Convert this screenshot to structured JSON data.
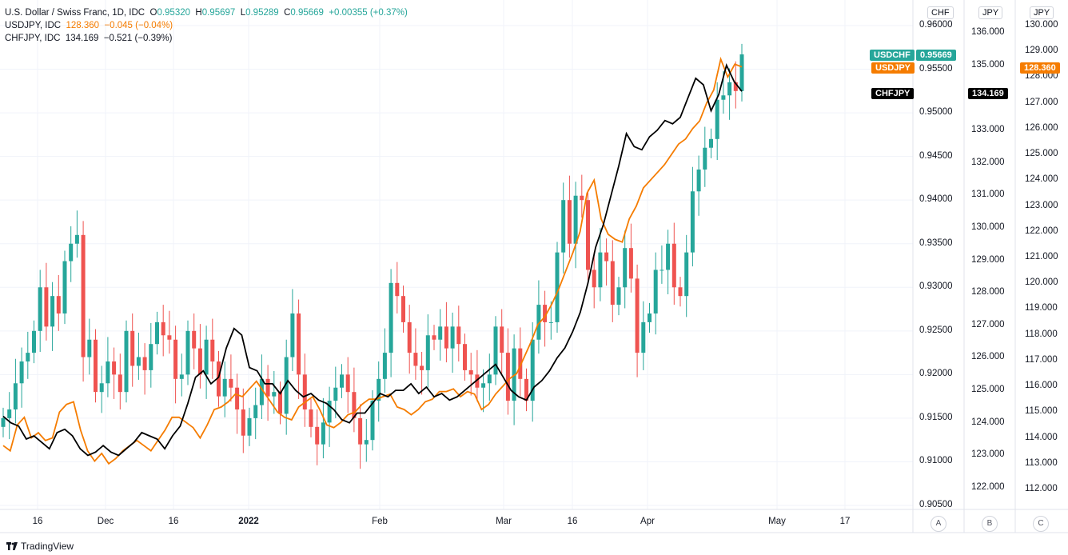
{
  "legend": {
    "usdchf": {
      "name": "U.S. Dollar / Swiss Franc, 1D, IDC",
      "o_label": "O",
      "o": "0.95320",
      "h_label": "H",
      "h": "0.95697",
      "l_label": "L",
      "l": "0.95289",
      "c_label": "C",
      "c": "0.95669",
      "change": "+0.00355 (+0.37%)"
    },
    "usdjpy": {
      "name": "USDJPY, IDC",
      "value": "128.360",
      "change": "−0.045 (−0.04%)"
    },
    "chfjpy": {
      "name": "CHFJPY, IDC",
      "value": "134.169",
      "change": "−0.521 (−0.39%)"
    }
  },
  "axes": {
    "a_header": "CHF",
    "b_header": "JPY",
    "c_header": "JPY",
    "a_button": "A",
    "b_button": "B",
    "c_button": "C",
    "a_ticks": [
      "0.96000",
      "0.95500",
      "0.95000",
      "0.94500",
      "0.94000",
      "0.93500",
      "0.93000",
      "0.92500",
      "0.92000",
      "0.91500",
      "0.91000",
      "0.90500"
    ],
    "b_ticks": [
      "136.000",
      "135.000",
      "134.000",
      "133.000",
      "132.000",
      "131.000",
      "130.000",
      "129.000",
      "128.000",
      "127.000",
      "126.000",
      "125.000",
      "124.000",
      "123.000",
      "122.000"
    ],
    "c_ticks": [
      "130.000",
      "129.000",
      "128.000",
      "127.000",
      "126.000",
      "125.000",
      "124.000",
      "123.000",
      "122.000",
      "121.000",
      "120.000",
      "119.000",
      "118.000",
      "117.000",
      "116.000",
      "115.000",
      "114.000",
      "113.000",
      "112.000"
    ],
    "x_ticks": [
      "16",
      "Dec",
      "16",
      "2022",
      "Feb",
      "Mar",
      "16",
      "Apr",
      "May",
      "17"
    ]
  },
  "price_tags": {
    "usdchf_name": "USDCHF",
    "usdchf_value": "0.95669",
    "usdjpy_name": "USDJPY",
    "usdjpy_value": "128.360",
    "chfjpy_name": "CHFJPY",
    "chfjpy_value": "134.169"
  },
  "colors": {
    "up": "#26a69a",
    "down": "#ef5350",
    "usdjpy": "#f57c00",
    "chfjpy": "#000000",
    "grid": "#f0f3fa"
  },
  "footer": {
    "brand": "TradingView"
  },
  "chart_data": {
    "type": "line",
    "title": "U.S. Dollar / Swiss Franc, 1D, IDC",
    "x_range": [
      "2021-11-05",
      "2022-04-20"
    ],
    "grid": true,
    "candles_usdchf": {
      "scale": "A",
      "closes": [
        0.915,
        0.916,
        0.919,
        0.9215,
        0.9225,
        0.925,
        0.93,
        0.9255,
        0.929,
        0.927,
        0.933,
        0.935,
        0.936,
        0.922,
        0.924,
        0.918,
        0.919,
        0.9215,
        0.92,
        0.918,
        0.925,
        0.921,
        0.922,
        0.9205,
        0.9235,
        0.926,
        0.9245,
        0.924,
        0.9195,
        0.92,
        0.925,
        0.923,
        0.92,
        0.924,
        0.9215,
        0.9175,
        0.9195,
        0.9185,
        0.916,
        0.913,
        0.915,
        0.9165,
        0.9195,
        0.9175,
        0.918,
        0.9155,
        0.922,
        0.927,
        0.92,
        0.916,
        0.914,
        0.912,
        0.9145,
        0.917,
        0.9185,
        0.92,
        0.918,
        0.915,
        0.912,
        0.9125,
        0.917,
        0.9195,
        0.9225,
        0.9305,
        0.929,
        0.926,
        0.9225,
        0.921,
        0.9205,
        0.9245,
        0.924,
        0.9255,
        0.923,
        0.9255,
        0.9235,
        0.9205,
        0.92,
        0.9185,
        0.919,
        0.92,
        0.9255,
        0.9225,
        0.917,
        0.923,
        0.9195,
        0.917,
        0.924,
        0.928,
        0.926,
        0.926,
        0.934,
        0.94,
        0.935,
        0.9405,
        0.94,
        0.932,
        0.93,
        0.934,
        0.933,
        0.928,
        0.93,
        0.9345,
        0.931,
        0.9225,
        0.926,
        0.927,
        0.932,
        0.932,
        0.935,
        0.93,
        0.929,
        0.934,
        0.941,
        0.9435,
        0.946,
        0.947,
        0.9515,
        0.952,
        0.9535,
        0.9525,
        0.9567
      ],
      "date_range_shown": "2021-11-05 to 2022-04-20"
    },
    "series": [
      {
        "name": "USDJPY",
        "scale": "C",
        "last": 128.36,
        "values": [
          113.7,
          113.5,
          114.5,
          114.8,
          114.0,
          114.2,
          113.9,
          114.0,
          115.0,
          115.3,
          115.4,
          114.3,
          113.5,
          113.1,
          113.4,
          113.0,
          113.2,
          113.5,
          113.7,
          113.9,
          113.7,
          113.5,
          113.9,
          114.3,
          114.8,
          114.8,
          114.6,
          114.4,
          114.0,
          114.5,
          115.1,
          115.2,
          115.4,
          115.7,
          115.6,
          115.9,
          116.2,
          115.8,
          115.4,
          115.0,
          114.8,
          114.7,
          115.2,
          115.4,
          115.6,
          115.1,
          114.5,
          114.4,
          114.6,
          114.9,
          115.0,
          115.3,
          115.5,
          115.5,
          115.6,
          115.7,
          115.2,
          115.1,
          114.9,
          115.1,
          115.4,
          115.5,
          115.8,
          115.8,
          115.9,
          115.6,
          115.8,
          115.7,
          115.1,
          115.3,
          115.7,
          116.0,
          116.3,
          116.5,
          117.1,
          117.7,
          118.4,
          118.7,
          119.2,
          119.8,
          120.5,
          121.2,
          122.0,
          123.5,
          124.0,
          122.5,
          121.9,
          121.7,
          121.6,
          122.5,
          123.0,
          123.7,
          124.0,
          124.3,
          124.6,
          125.0,
          125.4,
          125.6,
          126.0,
          126.3,
          127.0,
          127.5,
          128.7,
          128.0,
          128.5,
          128.4
        ],
        "approximate": true
      },
      {
        "name": "CHFJPY",
        "scale": "B",
        "last": 134.169,
        "values": [
          124.2,
          124.0,
          123.9,
          123.5,
          123.6,
          123.4,
          123.2,
          123.7,
          123.8,
          123.6,
          123.2,
          123.0,
          123.1,
          123.3,
          123.1,
          123.0,
          123.2,
          123.4,
          123.7,
          123.6,
          123.5,
          123.2,
          123.6,
          123.9,
          124.6,
          125.4,
          125.6,
          125.2,
          125.4,
          126.3,
          126.9,
          126.7,
          125.7,
          125.6,
          125.2,
          125.2,
          124.9,
          125.3,
          125.0,
          124.8,
          124.9,
          124.7,
          124.6,
          124.4,
          124.1,
          124.0,
          124.3,
          124.3,
          124.6,
          124.9,
          124.8,
          125.0,
          125.0,
          125.2,
          124.9,
          125.1,
          124.8,
          124.9,
          124.7,
          124.8,
          125.0,
          125.2,
          125.4,
          125.6,
          125.8,
          125.4,
          125.0,
          124.8,
          124.7,
          125.1,
          125.3,
          125.6,
          126.0,
          126.3,
          126.8,
          127.4,
          128.3,
          129.4,
          130.1,
          131.0,
          131.9,
          132.9,
          132.5,
          132.4,
          132.8,
          133.0,
          133.3,
          133.2,
          133.4,
          134.0,
          134.6,
          134.4,
          133.6,
          134.1,
          135.0,
          134.5,
          134.2
        ],
        "approximate": true
      }
    ],
    "axis_labels": {
      "A": "CHF",
      "B": "JPY",
      "C": "JPY"
    },
    "x_tick_labels": [
      "16",
      "Dec",
      "16",
      "2022",
      "Feb",
      "Mar",
      "16",
      "Apr",
      "May",
      "17"
    ]
  }
}
